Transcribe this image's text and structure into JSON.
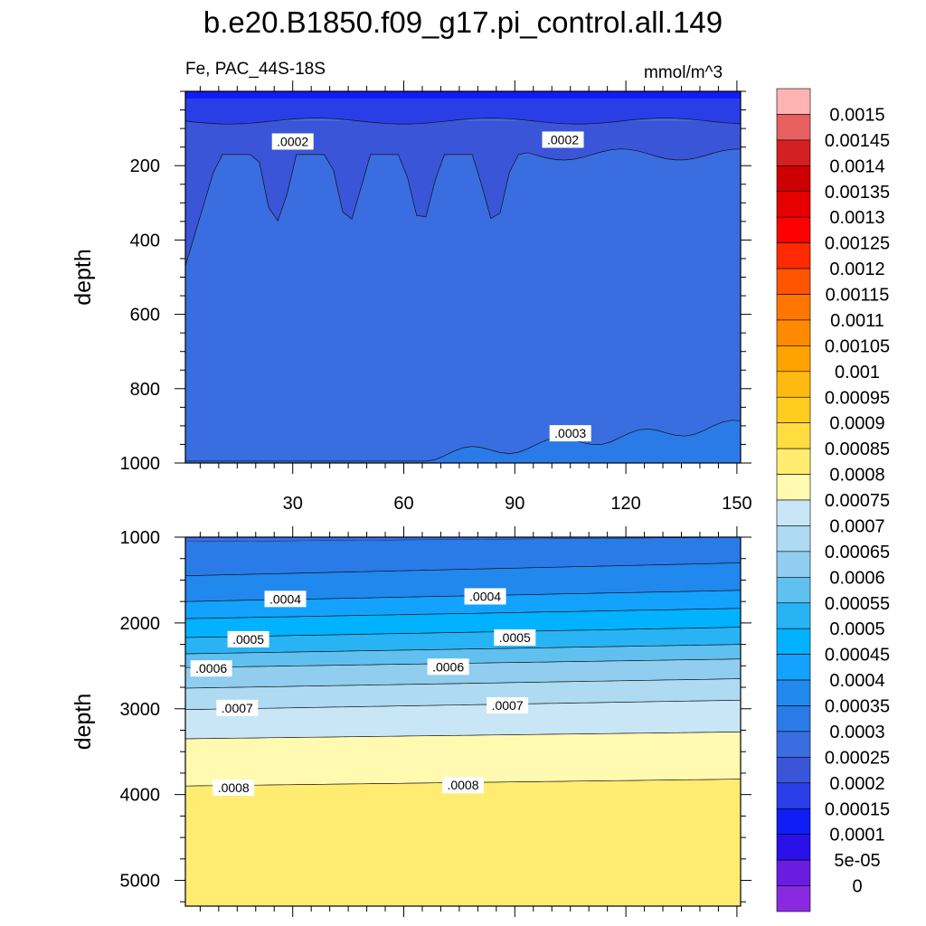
{
  "title": "b.e20.B1850.f09_g17.pi_control.all.149",
  "subtitle_left": "Fe, PAC_44S-18S",
  "subtitle_right": "mmol/m^3",
  "chart_data": {
    "type": "heatmap",
    "variable": "Fe",
    "units": "mmol/m^3",
    "x": {
      "ticks": [
        30,
        60,
        90,
        120,
        150
      ],
      "range": [
        1,
        151
      ]
    },
    "panels": [
      {
        "name": "upper",
        "ylabel": "depth",
        "ylim": [
          0,
          1000
        ],
        "y_ticks": [
          200,
          400,
          600,
          800,
          1000
        ],
        "contour_labels": [
          {
            "text": ".0002",
            "x": 30,
            "y": 135
          },
          {
            "text": ".0002",
            "x": 103,
            "y": 130
          },
          {
            "text": ".0003",
            "x": 105,
            "y": 920
          }
        ]
      },
      {
        "name": "lower",
        "ylabel": "depth",
        "ylim": [
          1000,
          5300
        ],
        "y_ticks": [
          1000,
          2000,
          3000,
          4000,
          5000
        ],
        "contour_labels": [
          {
            "text": ".0004",
            "x": 28,
            "y": 1720
          },
          {
            "text": ".0004",
            "x": 82,
            "y": 1690
          },
          {
            "text": ".0005",
            "x": 18,
            "y": 2190
          },
          {
            "text": ".0005",
            "x": 90,
            "y": 2170
          },
          {
            "text": ".0006",
            "x": 8,
            "y": 2530
          },
          {
            "text": ".0006",
            "x": 72,
            "y": 2510
          },
          {
            "text": ".0007",
            "x": 15,
            "y": 2990
          },
          {
            "text": ".0007",
            "x": 88,
            "y": 2960
          },
          {
            "text": ".0008",
            "x": 14,
            "y": 3920
          },
          {
            "text": ".0008",
            "x": 76,
            "y": 3890
          }
        ]
      }
    ],
    "colorbar": {
      "labels": [
        "0.0015",
        "0.00145",
        "0.0014",
        "0.00135",
        "0.0013",
        "0.00125",
        "0.0012",
        "0.00115",
        "0.0011",
        "0.00105",
        "0.001",
        "0.00095",
        "0.0009",
        "0.00085",
        "0.0008",
        "0.00075",
        "0.0007",
        "0.00065",
        "0.0006",
        "0.00055",
        "0.0005",
        "0.00045",
        "0.0004",
        "0.00035",
        "0.0003",
        "0.00025",
        "0.0002",
        "0.00015",
        "0.0001",
        "5e-05",
        "0"
      ],
      "colors": [
        "#ffb3b3",
        "#e86060",
        "#d42020",
        "#cc0000",
        "#e60000",
        "#ff0000",
        "#ff2a00",
        "#ff5500",
        "#ff7700",
        "#ff8a00",
        "#ffa200",
        "#ffba10",
        "#ffcc20",
        "#ffdd40",
        "#ffec70",
        "#fffab0",
        "#c8e6f6",
        "#aedaf2",
        "#90cdee",
        "#60c0f0",
        "#28b4f4",
        "#00b2ff",
        "#14a2ff",
        "#2188ee",
        "#2a7ae8",
        "#3a6ee0",
        "#3a55d8",
        "#2a3ee8",
        "#0f1ef5",
        "#2a10e8",
        "#6a1ce0",
        "#8a2ae0"
      ]
    }
  }
}
